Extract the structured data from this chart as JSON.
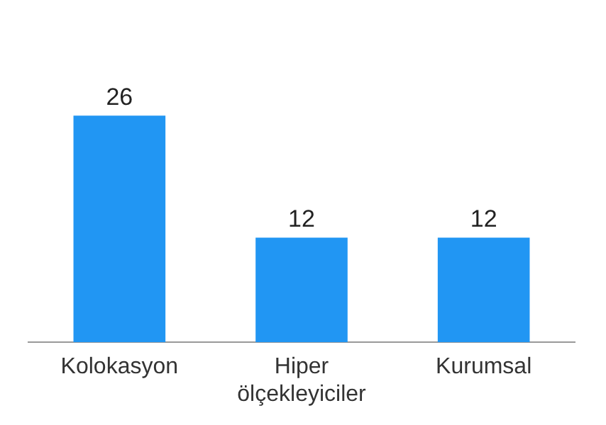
{
  "chart_data": {
    "type": "bar",
    "categories": [
      "Kolokasyon",
      "Hiper ölçekleyiciler",
      "Kurumsal"
    ],
    "values": [
      26,
      12,
      12
    ],
    "color": "#2196f3",
    "data_labels": true,
    "grid": false,
    "legend": false,
    "tick_labels": "x"
  }
}
